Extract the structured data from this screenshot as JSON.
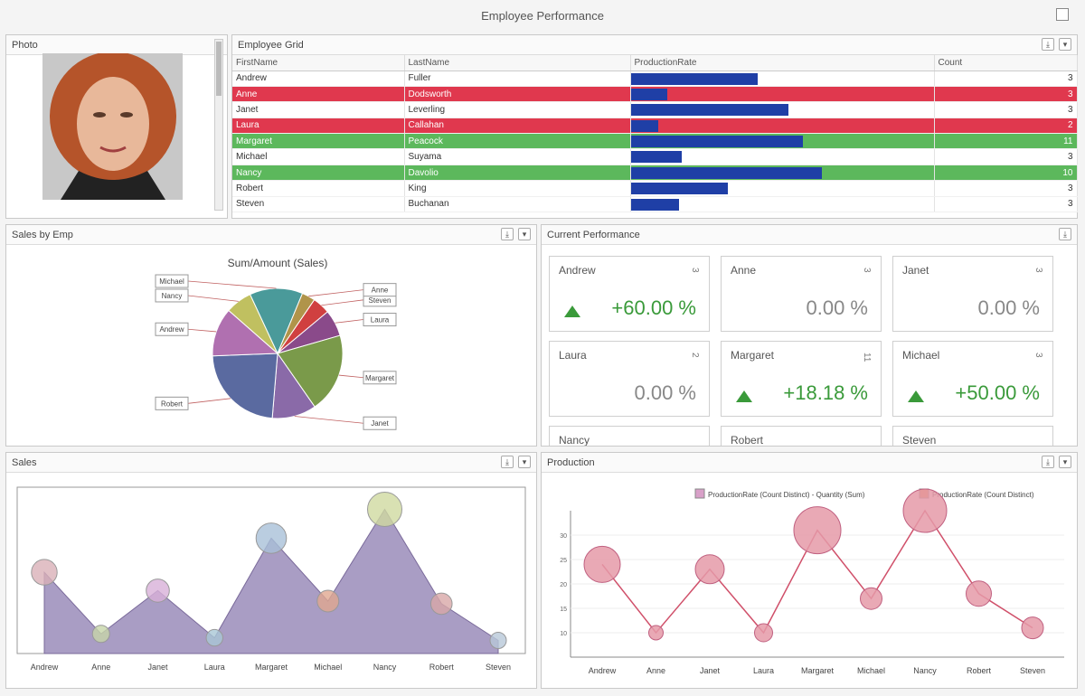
{
  "window": {
    "title": "Employee Performance"
  },
  "photo_panel": {
    "title": "Photo"
  },
  "grid_panel": {
    "title": "Employee Grid",
    "columns": [
      "FirstName",
      "LastName",
      "ProductionRate",
      "Count"
    ],
    "rows": [
      {
        "first": "Andrew",
        "last": "Fuller",
        "rate": 0.42,
        "count": "3",
        "state": "normal"
      },
      {
        "first": "Anne",
        "last": "Dodsworth",
        "rate": 0.12,
        "count": "3",
        "state": "red"
      },
      {
        "first": "Janet",
        "last": "Leverling",
        "rate": 0.52,
        "count": "3",
        "state": "normal"
      },
      {
        "first": "Laura",
        "last": "Callahan",
        "rate": 0.09,
        "count": "2",
        "state": "red"
      },
      {
        "first": "Margaret",
        "last": "Peacock",
        "rate": 0.57,
        "count": "11",
        "state": "green"
      },
      {
        "first": "Michael",
        "last": "Suyama",
        "rate": 0.17,
        "count": "3",
        "state": "normal"
      },
      {
        "first": "Nancy",
        "last": "Davolio",
        "rate": 0.63,
        "count": "10",
        "state": "green"
      },
      {
        "first": "Robert",
        "last": "King",
        "rate": 0.32,
        "count": "3",
        "state": "normal"
      },
      {
        "first": "Steven",
        "last": "Buchanan",
        "rate": 0.16,
        "count": "3",
        "state": "normal"
      }
    ]
  },
  "sales_panel": {
    "title": "Sales by Emp",
    "chart_data": {
      "type": "pie",
      "title": "Sum/Amount (Sales)",
      "categories": [
        "Steven",
        "Laura",
        "Margaret",
        "Janet",
        "Robert",
        "Andrew",
        "Nancy",
        "Michael",
        "Anne"
      ],
      "values": [
        4,
        6,
        18,
        10,
        21,
        11,
        6,
        12,
        3
      ],
      "colors": [
        "#d04040",
        "#8a4a8a",
        "#7a9a4a",
        "#8a6aa8",
        "#5a6aa0",
        "#b070b0",
        "#c0c060",
        "#4a9a9a",
        "#b0944a"
      ]
    }
  },
  "perf_panel": {
    "title": "Current Performance",
    "cards": [
      {
        "name": "Andrew",
        "count": "3",
        "value": "+60.00 %",
        "up": true
      },
      {
        "name": "Anne",
        "count": "3",
        "value": "0.00 %",
        "up": false
      },
      {
        "name": "Janet",
        "count": "3",
        "value": "0.00 %",
        "up": false
      },
      {
        "name": "Laura",
        "count": "2",
        "value": "0.00 %",
        "up": false
      },
      {
        "name": "Margaret",
        "count": "11",
        "value": "+18.18 %",
        "up": true
      },
      {
        "name": "Michael",
        "count": "3",
        "value": "+50.00 %",
        "up": true
      },
      {
        "name": "Nancy",
        "count": "",
        "value": "",
        "up": false
      },
      {
        "name": "Robert",
        "count": "",
        "value": "",
        "up": false
      },
      {
        "name": "Steven",
        "count": "",
        "value": "",
        "up": false
      }
    ]
  },
  "sales2_panel": {
    "title": "Sales",
    "chart_data": {
      "type": "area",
      "categories": [
        "Andrew",
        "Anne",
        "Janet",
        "Laura",
        "Margaret",
        "Michael",
        "Nancy",
        "Robert",
        "Steven"
      ],
      "values": [
        62,
        15,
        48,
        12,
        88,
        40,
        110,
        38,
        10
      ],
      "ylim": [
        0,
        120
      ]
    }
  },
  "prod_panel": {
    "title": "Production",
    "legend": [
      "ProductionRate (Count Distinct) - Quantity (Sum)",
      "ProductionRate (Count Distinct)"
    ],
    "chart_data": {
      "type": "scatter",
      "categories": [
        "Andrew",
        "Anne",
        "Janet",
        "Laura",
        "Margaret",
        "Michael",
        "Nancy",
        "Robert",
        "Steven"
      ],
      "values": [
        24,
        10,
        23,
        10,
        31,
        17,
        35,
        18,
        11
      ],
      "sizes": [
        20,
        8,
        16,
        10,
        26,
        12,
        24,
        14,
        12
      ],
      "yticks": [
        "10",
        "15",
        "20",
        "25",
        "30"
      ]
    }
  },
  "colors": {
    "red_row": "#e0384e",
    "green_row": "#5cb85c",
    "bar": "#1f3fa6",
    "area": "#a99dc4",
    "bubble": "#e59aa8"
  }
}
